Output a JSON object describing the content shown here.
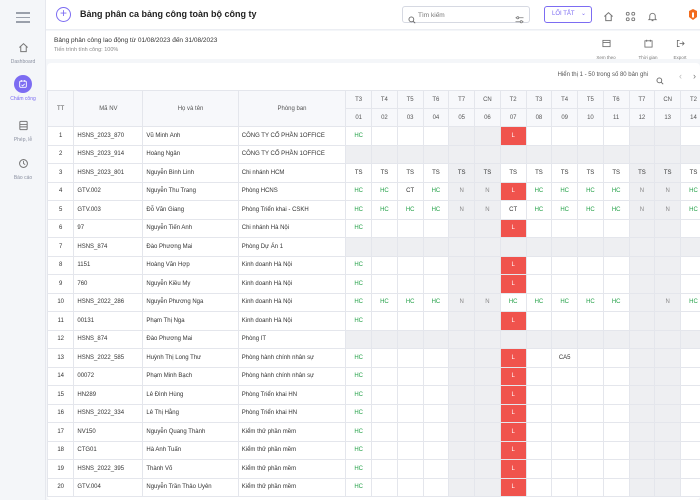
{
  "sidebar": {
    "items": [
      {
        "label": "Dashboard",
        "icon": "home-icon"
      },
      {
        "label": "Chấm công",
        "icon": "attendance-icon",
        "active": true
      },
      {
        "label": "Phép, lễ",
        "icon": "leave-icon"
      },
      {
        "label": "Báo cáo",
        "icon": "report-icon"
      }
    ]
  },
  "topbar": {
    "title": "Bảng phân ca bảng công toàn bộ công ty",
    "search_placeholder": "Tìm kiếm",
    "shortcut_label": "LỐI TẮT"
  },
  "info": {
    "title": "Bảng phân công lao động từ 01/08/2023 đến 31/08/2023",
    "subtitle": "Tiến trình tính công: 100%",
    "tools": [
      "Xem theo",
      "Thời gian",
      "Export"
    ]
  },
  "pager": {
    "text": "Hiển thị 1 - 50 trong số 80 bản ghi"
  },
  "table": {
    "headers": {
      "tt": "TT",
      "code": "Mã NV",
      "name": "Họ và tên",
      "dept": "Phòng ban"
    },
    "weekdays": [
      "T3",
      "T4",
      "T5",
      "T6",
      "T7",
      "CN",
      "T2",
      "T3",
      "T4",
      "T5",
      "T6",
      "T7",
      "CN",
      "T2"
    ],
    "dates": [
      "01",
      "02",
      "03",
      "04",
      "05",
      "06",
      "07",
      "08",
      "09",
      "10",
      "11",
      "12",
      "13",
      "14"
    ],
    "weekend_cols": [
      4,
      5,
      11,
      12
    ],
    "rows": [
      {
        "tt": "1",
        "code": "HSNS_2023_870",
        "name": "Vũ Minh Anh",
        "dept": "CÔNG TY CỔ PHẦN 1OFFICE",
        "days": [
          "HC",
          "",
          "",
          "",
          "",
          "",
          "L",
          "",
          "",
          "",
          "",
          "",
          "",
          ""
        ]
      },
      {
        "tt": "2",
        "code": "HSNS_2023_914",
        "name": "Hoàng Ngân",
        "dept": "CÔNG TY CỔ PHẦN 1OFFICE",
        "days": [
          "",
          "",
          "",
          "",
          "",
          "",
          "",
          "",
          "",
          "",
          "",
          "",
          "",
          ""
        ]
      },
      {
        "tt": "3",
        "code": "HSNS_2023_801",
        "name": "Nguyễn Bình Linh",
        "dept": "Chi nhánh HCM",
        "days": [
          "TS",
          "TS",
          "TS",
          "TS",
          "TS",
          "TS",
          "TS",
          "TS",
          "TS",
          "TS",
          "TS",
          "TS",
          "TS",
          "TS"
        ]
      },
      {
        "tt": "4",
        "code": "GTV.002",
        "name": "Nguyễn Thu Trang",
        "dept": "Phòng HCNS",
        "days": [
          "HC",
          "HC",
          "CT",
          "HC",
          "N",
          "N",
          "L",
          "HC",
          "HC",
          "HC",
          "HC",
          "N",
          "N",
          "HC"
        ]
      },
      {
        "tt": "5",
        "code": "GTV.003",
        "name": "Đỗ Văn Giang",
        "dept": "Phòng Triển khai - CSKH",
        "days": [
          "HC",
          "HC",
          "HC",
          "HC",
          "N",
          "N",
          "CT",
          "HC",
          "HC",
          "HC",
          "HC",
          "N",
          "N",
          "HC"
        ]
      },
      {
        "tt": "6",
        "code": "97",
        "name": "Nguyễn Tiến Anh",
        "dept": "Chi nhánh Hà Nội",
        "days": [
          "HC",
          "",
          "",
          "",
          "",
          "",
          "L",
          "",
          "",
          "",
          "",
          "",
          "",
          ""
        ]
      },
      {
        "tt": "7",
        "code": "HSNS_874",
        "name": "Đào Phương Mai",
        "dept": "Phòng Dự Án 1",
        "days": [
          "",
          "",
          "",
          "",
          "",
          "",
          "",
          "",
          "",
          "",
          "",
          "",
          "",
          ""
        ]
      },
      {
        "tt": "8",
        "code": "1151",
        "name": "Hoàng Văn Hợp",
        "dept": "Kinh doanh Hà Nội",
        "days": [
          "HC",
          "",
          "",
          "",
          "",
          "",
          "L",
          "",
          "",
          "",
          "",
          "",
          "",
          ""
        ]
      },
      {
        "tt": "9",
        "code": "760",
        "name": "Nguyễn Kiều My",
        "dept": "Kinh doanh Hà Nội",
        "days": [
          "HC",
          "",
          "",
          "",
          "",
          "",
          "L",
          "",
          "",
          "",
          "",
          "",
          "",
          ""
        ]
      },
      {
        "tt": "10",
        "code": "HSNS_2022_286",
        "name": "Nguyễn Phương Nga",
        "dept": "Kinh doanh Hà Nội",
        "days": [
          "HC",
          "HC",
          "HC",
          "HC",
          "N",
          "N",
          "HC",
          "HC",
          "HC",
          "HC",
          "HC",
          "",
          "N",
          "HC"
        ]
      },
      {
        "tt": "11",
        "code": "00131",
        "name": "Phạm Thị Nga",
        "dept": "Kinh doanh Hà Nội",
        "days": [
          "HC",
          "",
          "",
          "",
          "",
          "",
          "L",
          "",
          "",
          "",
          "",
          "",
          "",
          ""
        ]
      },
      {
        "tt": "12",
        "code": "HSNS_874",
        "name": "Đào Phương Mai",
        "dept": "Phòng IT",
        "days": [
          "",
          "",
          "",
          "",
          "",
          "",
          "",
          "",
          "",
          "",
          "",
          "",
          "",
          ""
        ]
      },
      {
        "tt": "13",
        "code": "HSNS_2022_585",
        "name": "Huỳnh Thị Long Thư",
        "dept": "Phòng hành chính nhân sự",
        "days": [
          "HC",
          "",
          "",
          "",
          "",
          "",
          "L",
          "",
          "CA5",
          "",
          "",
          "",
          "",
          ""
        ]
      },
      {
        "tt": "14",
        "code": "00072",
        "name": "Phạm Minh Bạch",
        "dept": "Phòng hành chính nhân sự",
        "days": [
          "HC",
          "",
          "",
          "",
          "",
          "",
          "L",
          "",
          "",
          "",
          "",
          "",
          "",
          ""
        ]
      },
      {
        "tt": "15",
        "code": "HN289",
        "name": "Lê Đình Hùng",
        "dept": "Phòng Triển khai HN",
        "days": [
          "HC",
          "",
          "",
          "",
          "",
          "",
          "L",
          "",
          "",
          "",
          "",
          "",
          "",
          ""
        ]
      },
      {
        "tt": "16",
        "code": "HSNS_2022_334",
        "name": "Lê Thị Hằng",
        "dept": "Phòng Triển khai HN",
        "days": [
          "HC",
          "",
          "",
          "",
          "",
          "",
          "L",
          "",
          "",
          "",
          "",
          "",
          "",
          ""
        ]
      },
      {
        "tt": "17",
        "code": "NV150",
        "name": "Nguyễn Quang Thành",
        "dept": "Kiểm thử phần mềm",
        "days": [
          "HC",
          "",
          "",
          "",
          "",
          "",
          "L",
          "",
          "",
          "",
          "",
          "",
          "",
          ""
        ]
      },
      {
        "tt": "18",
        "code": "CTG01",
        "name": "Hà Anh Tuấn",
        "dept": "Kiểm thử phần mềm",
        "days": [
          "HC",
          "",
          "",
          "",
          "",
          "",
          "L",
          "",
          "",
          "",
          "",
          "",
          "",
          ""
        ]
      },
      {
        "tt": "19",
        "code": "HSNS_2022_395",
        "name": "Thành Võ",
        "dept": "Kiểm thử phần mềm",
        "days": [
          "HC",
          "",
          "",
          "",
          "",
          "",
          "L",
          "",
          "",
          "",
          "",
          "",
          "",
          ""
        ]
      },
      {
        "tt": "20",
        "code": "GTV.004",
        "name": "Nguyễn Trần Thảo Uyên",
        "dept": "Kiểm thử phần mềm",
        "days": [
          "HC",
          "",
          "",
          "",
          "",
          "",
          "L",
          "",
          "",
          "",
          "",
          "",
          "",
          ""
        ]
      }
    ]
  },
  "colors": {
    "accent": "#7c6cf2",
    "leave_red": "#f0534d",
    "hc_green": "#24a148",
    "weekend_gray": "#eeeff2"
  }
}
